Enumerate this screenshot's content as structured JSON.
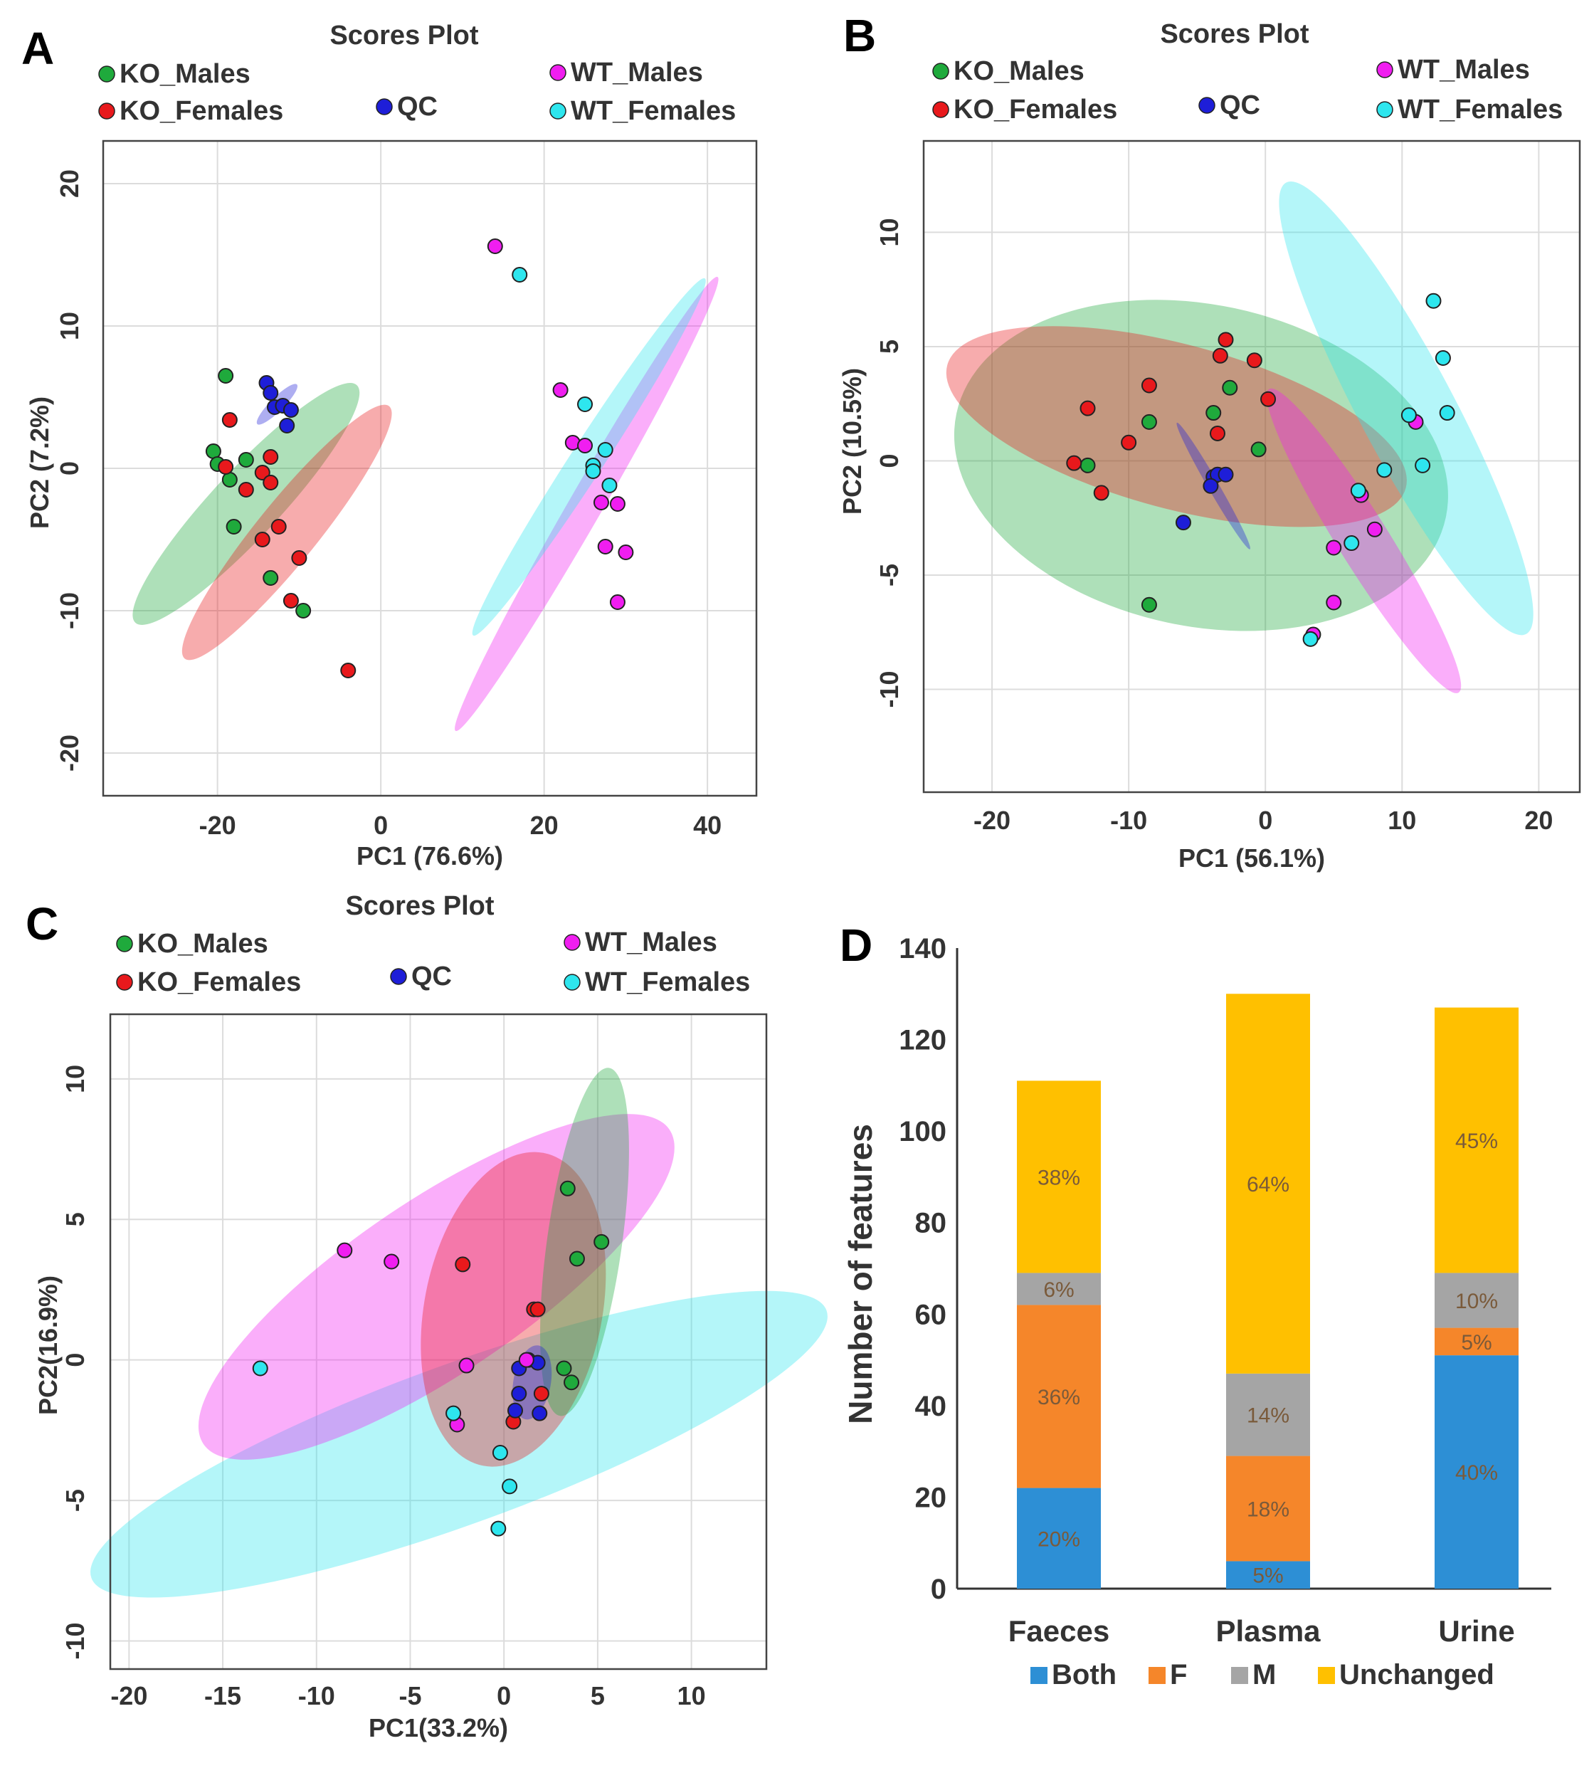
{
  "colors": {
    "KO_Males": "#1faa3c",
    "KO_Females": "#e8191c",
    "QC": "#1e1ed8",
    "WT_Males": "#f01ef0",
    "WT_Females": "#2ee6ee",
    "Both": "#2d8fd5",
    "F": "#f5862a",
    "M": "#a5a5a5",
    "Unchanged": "#ffc000"
  },
  "chart_data": [
    {
      "panel": "A",
      "type": "scatter",
      "title": "Scores Plot",
      "xlabel": "PC1 (76.6%)",
      "ylabel": "PC2 (7.2%)",
      "xlim": [
        -34,
        46
      ],
      "ylim": [
        -23,
        23
      ],
      "xticks": [
        -20,
        0,
        20,
        40
      ],
      "yticks": [
        20,
        10,
        0,
        -10,
        -20
      ],
      "legend": [
        "KO_Males",
        "KO_Females",
        "QC",
        "WT_Males",
        "WT_Females"
      ],
      "series": [
        {
          "name": "KO_Males",
          "points": [
            [
              -19,
              6.5
            ],
            [
              -20.5,
              1.2
            ],
            [
              -20,
              0.3
            ],
            [
              -18.5,
              -0.8
            ],
            [
              -16.5,
              0.6
            ],
            [
              -18,
              -4.1
            ],
            [
              -13.5,
              -7.7
            ],
            [
              -9.5,
              -10
            ]
          ]
        },
        {
          "name": "KO_Females",
          "points": [
            [
              -18.5,
              3.4
            ],
            [
              -19,
              0.1
            ],
            [
              -16.5,
              -1.5
            ],
            [
              -14.5,
              -0.3
            ],
            [
              -13.5,
              0.8
            ],
            [
              -13.5,
              -1
            ],
            [
              -12.5,
              -4.1
            ],
            [
              -14.5,
              -5
            ],
            [
              -10,
              -6.3
            ],
            [
              -11,
              -9.3
            ],
            [
              -4,
              -14.2
            ]
          ]
        },
        {
          "name": "QC",
          "points": [
            [
              -14,
              6
            ],
            [
              -13.5,
              5.3
            ],
            [
              -13,
              4.3
            ],
            [
              -12,
              4.4
            ],
            [
              -11,
              4.1
            ],
            [
              -11.5,
              3
            ]
          ]
        },
        {
          "name": "WT_Males",
          "points": [
            [
              14,
              15.6
            ],
            [
              22,
              5.5
            ],
            [
              23.5,
              1.8
            ],
            [
              25,
              1.6
            ],
            [
              27,
              -2.4
            ],
            [
              29,
              -2.5
            ],
            [
              27.5,
              -5.5
            ],
            [
              30,
              -5.9
            ],
            [
              29,
              -9.4
            ]
          ]
        },
        {
          "name": "WT_Females",
          "points": [
            [
              17,
              13.6
            ],
            [
              25,
              4.5
            ],
            [
              27.5,
              1.3
            ],
            [
              26,
              0.2
            ],
            [
              26,
              -0.2
            ],
            [
              28,
              -1.2
            ]
          ]
        }
      ],
      "ellipses": [
        {
          "group": "KO_Males",
          "center": [
            -16.5,
            -2.5
          ],
          "rx": 14.5,
          "ry": 3.0,
          "angle": -47
        },
        {
          "group": "KO_Females",
          "center": [
            -11.5,
            -4.5
          ],
          "rx": 14.5,
          "ry": 2.7,
          "angle": -51
        },
        {
          "group": "QC",
          "center": [
            -12.7,
            4.5
          ],
          "rx": 2.5,
          "ry": 0.6,
          "angle": -45
        },
        {
          "group": "WT_Males",
          "center": [
            25.2,
            -2.5
          ],
          "rx": 23.4,
          "ry": 1.5,
          "angle": -60
        },
        {
          "group": "WT_Females",
          "center": [
            25.5,
            0.8
          ],
          "rx": 19.0,
          "ry": 1.5,
          "angle": -57
        }
      ]
    },
    {
      "panel": "B",
      "type": "scatter",
      "title": "Scores Plot",
      "xlabel": "PC1 (56.1%)",
      "ylabel": "PC2 (10.5%)",
      "xlim": [
        -25,
        23
      ],
      "ylim": [
        -14.5,
        14
      ],
      "xticks": [
        -20,
        -10,
        0,
        10,
        20
      ],
      "yticks": [
        10,
        5,
        0,
        -5,
        -10
      ],
      "legend": [
        "KO_Males",
        "KO_Females",
        "QC",
        "WT_Males",
        "WT_Females"
      ],
      "series": [
        {
          "name": "KO_Males",
          "points": [
            [
              -13,
              -0.2
            ],
            [
              -8.5,
              1.7
            ],
            [
              -3.8,
              2.1
            ],
            [
              -2.6,
              3.2
            ],
            [
              -0.5,
              0.5
            ],
            [
              -8.5,
              -6.3
            ]
          ]
        },
        {
          "name": "KO_Females",
          "points": [
            [
              -13,
              2.3
            ],
            [
              -14,
              -0.1
            ],
            [
              -12,
              -1.4
            ],
            [
              -10,
              0.8
            ],
            [
              -8.5,
              3.3
            ],
            [
              -2.9,
              5.3
            ],
            [
              -3.3,
              4.6
            ],
            [
              -0.8,
              4.4
            ],
            [
              0.2,
              2.7
            ],
            [
              -3.5,
              1.2
            ]
          ]
        },
        {
          "name": "QC",
          "points": [
            [
              -3.8,
              -0.7
            ],
            [
              -3.5,
              -0.6
            ],
            [
              -2.9,
              -0.6
            ],
            [
              -4,
              -1.1
            ],
            [
              -6,
              -2.7
            ]
          ]
        },
        {
          "name": "WT_Males",
          "points": [
            [
              11,
              1.7
            ],
            [
              7,
              -1.5
            ],
            [
              8,
              -3
            ],
            [
              5,
              -3.8
            ],
            [
              5,
              -6.2
            ],
            [
              3.5,
              -7.6
            ]
          ]
        },
        {
          "name": "WT_Females",
          "points": [
            [
              12.3,
              7
            ],
            [
              13,
              4.5
            ],
            [
              10.5,
              2
            ],
            [
              13.3,
              2.1
            ],
            [
              8.7,
              -0.4
            ],
            [
              11.5,
              -0.2
            ],
            [
              6.8,
              -1.3
            ],
            [
              6.3,
              -3.6
            ],
            [
              3.3,
              -7.8
            ]
          ]
        }
      ],
      "ellipses": [
        {
          "group": "KO_Males",
          "center": [
            -4.7,
            -0.2
          ],
          "rx": 13.7,
          "ry": 8.8,
          "angle": 12
        },
        {
          "group": "KO_Females",
          "center": [
            -6.5,
            1.5
          ],
          "rx": 13.0,
          "ry": 4.5,
          "angle": 15
        },
        {
          "group": "QC",
          "center": [
            -3.8,
            -1.1
          ],
          "rx": 4.0,
          "ry": 0.3,
          "angle": 60
        },
        {
          "group": "WT_Males",
          "center": [
            7.2,
            -3.5
          ],
          "rx": 9.8,
          "ry": 1.4,
          "angle": 58
        },
        {
          "group": "WT_Females",
          "center": [
            10.3,
            2.3
          ],
          "rx": 14.0,
          "ry": 2.6,
          "angle": 62
        }
      ]
    },
    {
      "panel": "C",
      "type": "scatter",
      "title": "Scores Plot",
      "xlabel": "PC1(33.2%)",
      "ylabel": "PC2(16.9%)",
      "xlim": [
        -21,
        14
      ],
      "ylim": [
        -11,
        12.3
      ],
      "xticks": [
        -20,
        -15,
        -10,
        -5,
        0,
        5,
        10
      ],
      "yticks": [
        10,
        5,
        0,
        -5,
        -10
      ],
      "legend": [
        "KO_Males",
        "KO_Females",
        "QC",
        "WT_Males",
        "WT_Females"
      ],
      "series": [
        {
          "name": "KO_Males",
          "points": [
            [
              3.4,
              6.1
            ],
            [
              5.2,
              4.2
            ],
            [
              3.9,
              3.6
            ],
            [
              3.2,
              -0.3
            ],
            [
              3.6,
              -0.8
            ]
          ]
        },
        {
          "name": "KO_Females",
          "points": [
            [
              -2.2,
              3.4
            ],
            [
              1.6,
              1.8
            ],
            [
              1.8,
              1.8
            ],
            [
              2,
              -1.2
            ],
            [
              0.5,
              -2.2
            ]
          ]
        },
        {
          "name": "QC",
          "points": [
            [
              1.3,
              0
            ],
            [
              1.8,
              -0.1
            ],
            [
              0.8,
              -0.3
            ],
            [
              0.8,
              -1.2
            ],
            [
              0.6,
              -1.8
            ],
            [
              1.9,
              -1.9
            ]
          ]
        },
        {
          "name": "WT_Males",
          "points": [
            [
              -8.5,
              3.9
            ],
            [
              -6,
              3.5
            ],
            [
              -2,
              -0.2
            ],
            [
              -2.5,
              -2.3
            ],
            [
              1.2,
              0
            ]
          ]
        },
        {
          "name": "WT_Females",
          "points": [
            [
              -13,
              -0.3
            ],
            [
              -2.7,
              -1.9
            ],
            [
              -0.2,
              -3.3
            ],
            [
              0.3,
              -4.5
            ],
            [
              -0.3,
              -6
            ]
          ]
        }
      ],
      "ellipses": [
        {
          "group": "WT_Females",
          "center": [
            -2.4,
            -3
          ],
          "rx": 16.7,
          "ry": 3.4,
          "angle": -20
        },
        {
          "group": "WT_Males",
          "center": [
            -3.6,
            2.6
          ],
          "rx": 12.0,
          "ry": 3.7,
          "angle": -34
        },
        {
          "group": "KO_Females",
          "center": [
            0.5,
            1.8
          ],
          "rx": 6.8,
          "ry": 3.8,
          "angle": -79
        },
        {
          "group": "KO_Males",
          "center": [
            4.3,
            4.2
          ],
          "rx": 7.5,
          "ry": 1.6,
          "angle": -82
        },
        {
          "group": "QC",
          "center": [
            1.5,
            -0.8
          ],
          "rx": 1.6,
          "ry": 0.8,
          "angle": -80
        }
      ]
    },
    {
      "panel": "D",
      "type": "bar",
      "stacked": true,
      "ylabel": "Number of features",
      "ylim": [
        0,
        140
      ],
      "yticks": [
        0,
        20,
        40,
        60,
        80,
        100,
        120,
        140
      ],
      "categories": [
        "Faeces",
        "Plasma",
        "Urine"
      ],
      "series": [
        {
          "name": "Both",
          "values": [
            22,
            6,
            51
          ],
          "labels": [
            "20%",
            "5%",
            "40%"
          ]
        },
        {
          "name": "F",
          "values": [
            40,
            23,
            6
          ],
          "labels": [
            "36%",
            "18%",
            "5%"
          ]
        },
        {
          "name": "M",
          "values": [
            7,
            18,
            12
          ],
          "labels": [
            "6%",
            "14%",
            "10%"
          ]
        },
        {
          "name": "Unchanged",
          "values": [
            42,
            83,
            58
          ],
          "labels": [
            "38%",
            "64%",
            "45%"
          ]
        }
      ],
      "legend": [
        "Both",
        "F",
        "M",
        "Unchanged"
      ]
    }
  ]
}
